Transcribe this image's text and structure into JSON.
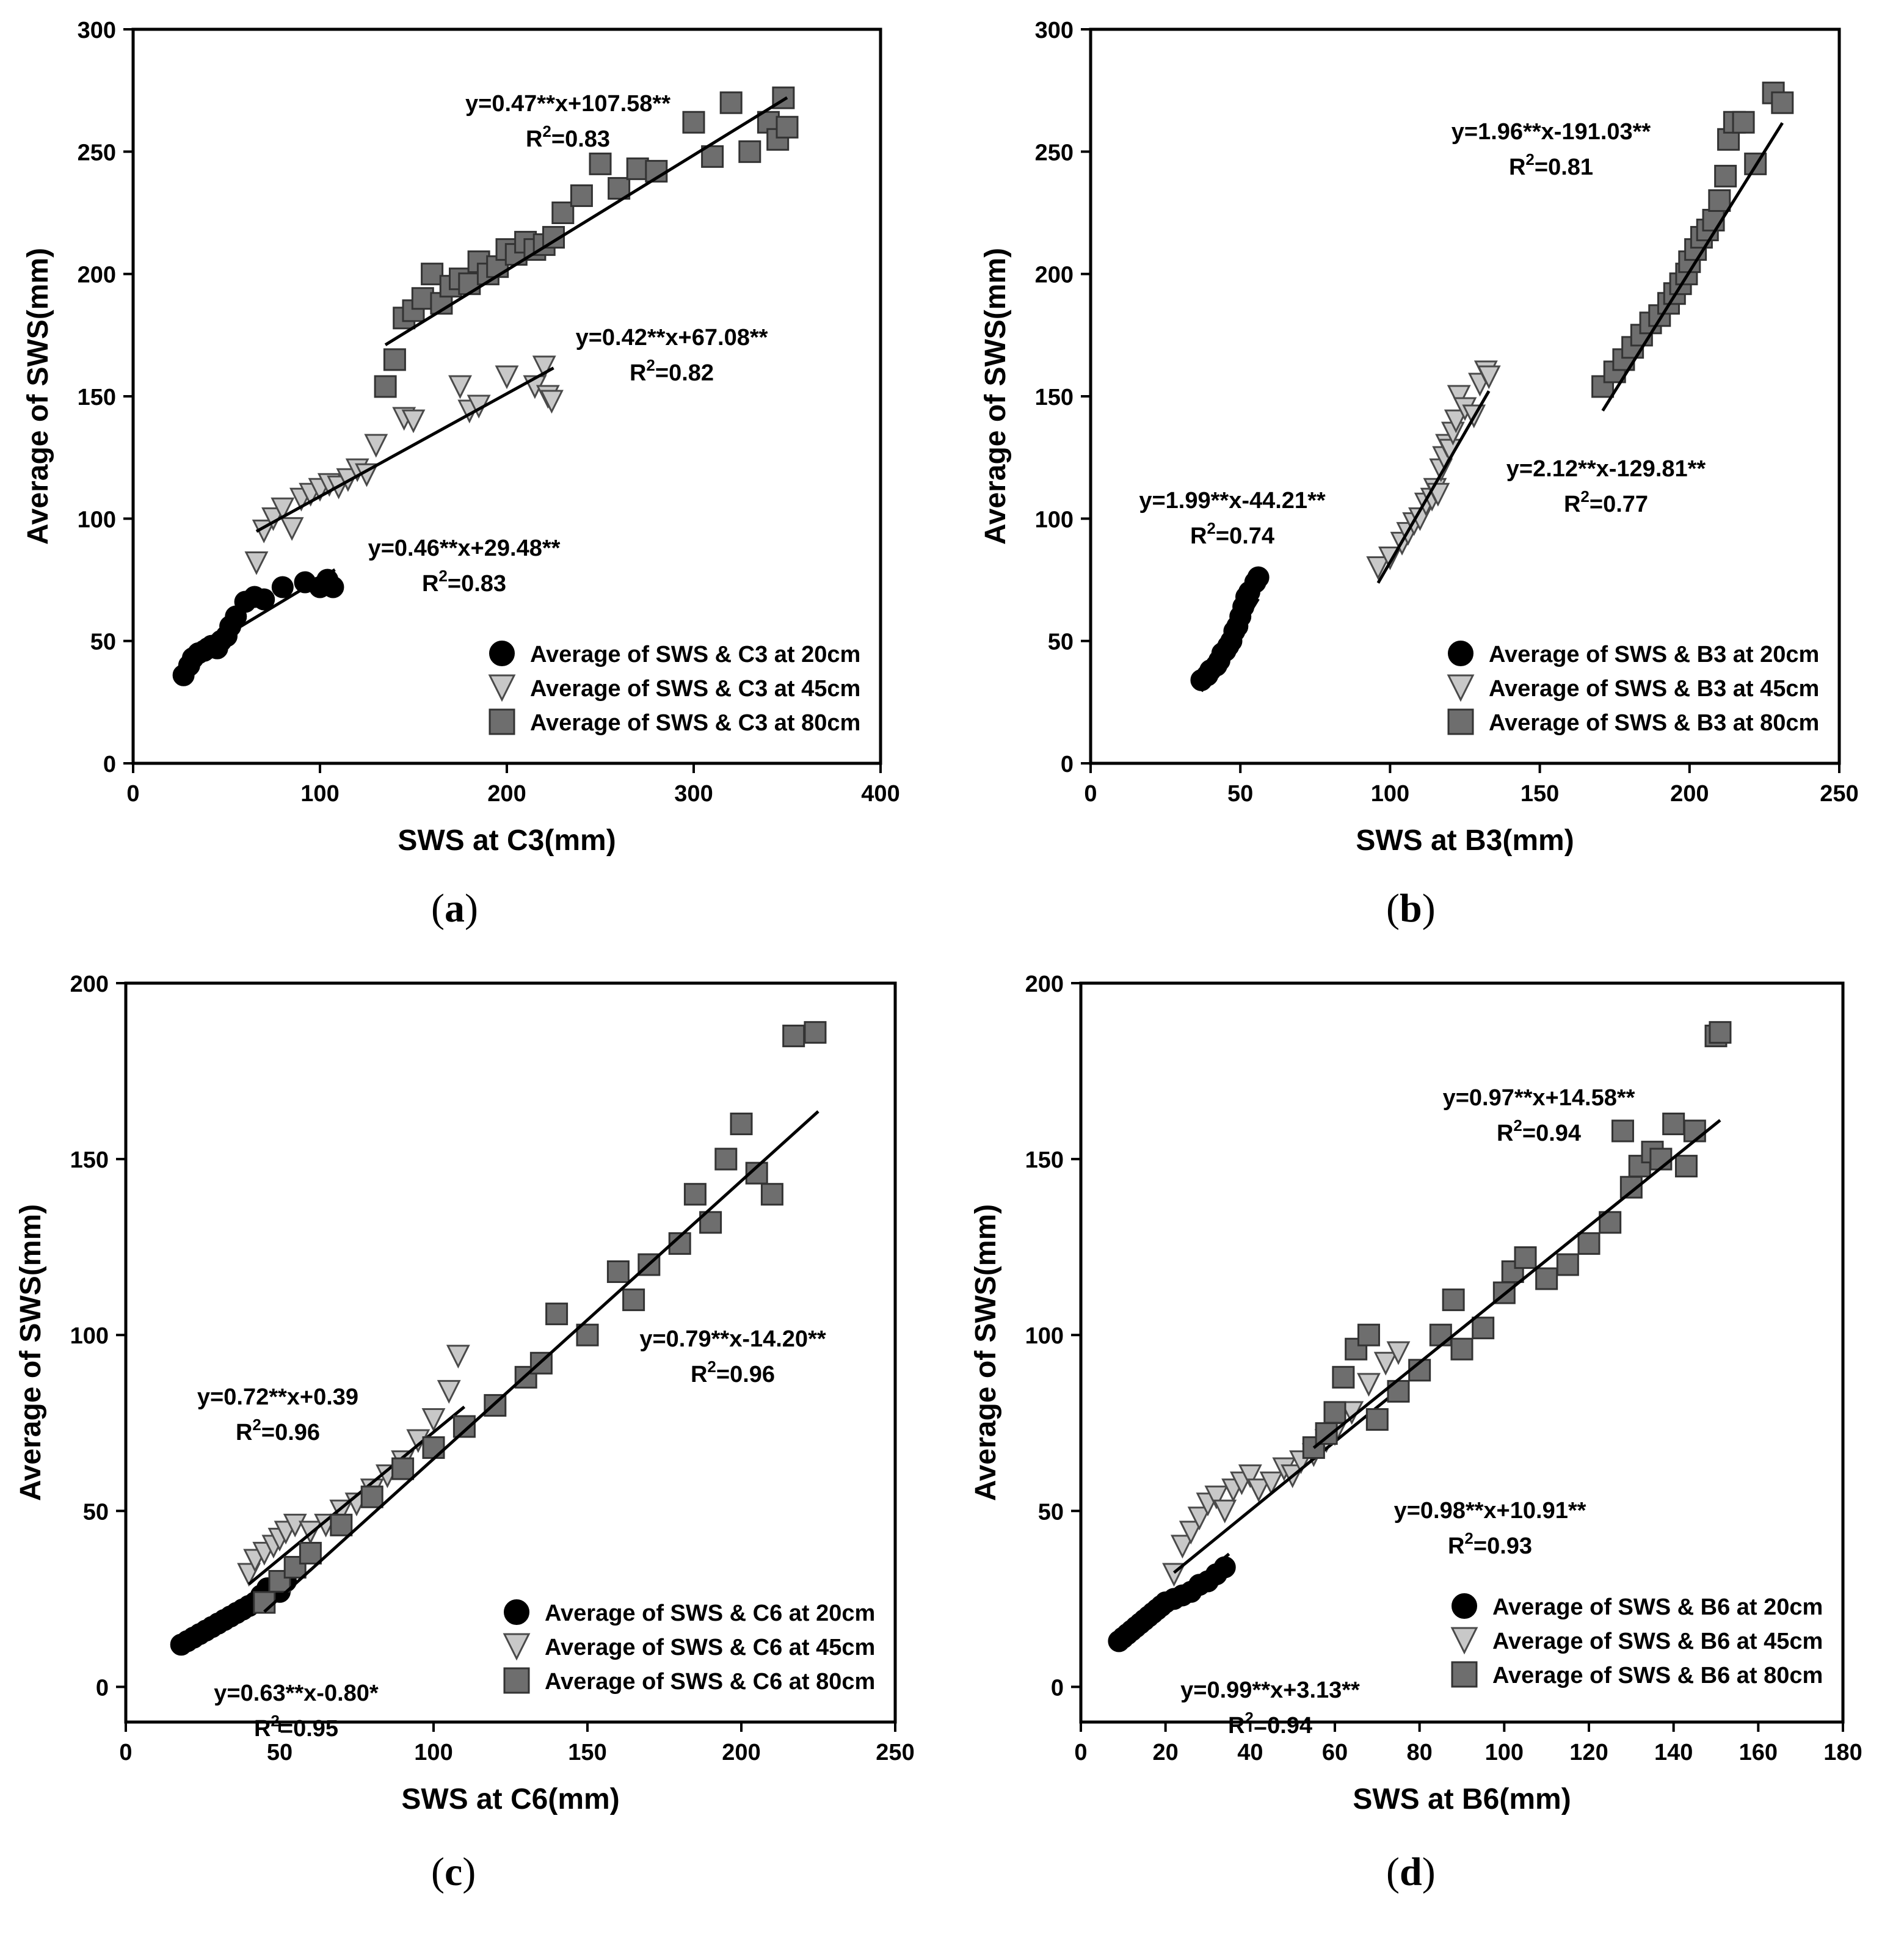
{
  "figure": {
    "captions": [
      {
        "pre": "(",
        "letter": "a",
        "post": ")"
      },
      {
        "pre": "(",
        "letter": "b",
        "post": ")"
      },
      {
        "pre": "(",
        "letter": "c",
        "post": ")"
      },
      {
        "pre": "(",
        "letter": "d",
        "post": ")"
      }
    ]
  },
  "chart_data": [
    {
      "type": "scatter",
      "xlabel": "SWS at C3(mm)",
      "ylabel": "Average of SWS(mm)",
      "xlim": [
        0,
        400
      ],
      "ylim": [
        0,
        300
      ],
      "xticks": [
        0,
        100,
        200,
        300,
        400
      ],
      "yticks": [
        0,
        50,
        100,
        150,
        200,
        250,
        300
      ],
      "legend_position": "bottom-right",
      "series": [
        {
          "name": "Average of SWS & C3 at 20cm",
          "marker": "circle",
          "fit": [
            0.46,
            29.48
          ],
          "fit_range": [
            27,
            108
          ],
          "x": [
            27,
            30,
            32,
            35,
            38,
            40,
            42,
            45,
            47,
            50,
            52,
            55,
            60,
            65,
            70,
            80,
            92,
            100,
            104,
            107
          ],
          "y": [
            36,
            40,
            43,
            45,
            46,
            47,
            48,
            47,
            50,
            52,
            56,
            60,
            66,
            68,
            67,
            72,
            74,
            72,
            75,
            72
          ]
        },
        {
          "name": "Average of SWS & C3 at 45cm",
          "marker": "triangle-down",
          "fit": [
            0.42,
            67.08
          ],
          "fit_range": [
            66,
            225
          ],
          "x": [
            66,
            70,
            75,
            80,
            85,
            90,
            95,
            100,
            105,
            110,
            115,
            120,
            125,
            130,
            145,
            150,
            175,
            180,
            185,
            200,
            215,
            220,
            222,
            224
          ],
          "y": [
            82,
            95,
            100,
            104,
            96,
            108,
            110,
            112,
            114,
            113,
            116,
            120,
            118,
            130,
            141,
            140,
            154,
            144,
            146,
            158,
            154,
            162,
            150,
            148
          ]
        },
        {
          "name": "Average of SWS & C3 at 80cm",
          "marker": "square",
          "fit": [
            0.47,
            107.58
          ],
          "fit_range": [
            135,
            350
          ],
          "x": [
            135,
            140,
            145,
            150,
            155,
            160,
            165,
            170,
            175,
            180,
            185,
            190,
            195,
            200,
            205,
            210,
            215,
            220,
            225,
            230,
            240,
            250,
            260,
            270,
            280,
            300,
            310,
            320,
            330,
            340,
            345,
            348,
            350
          ],
          "y": [
            154,
            165,
            182,
            185,
            190,
            200,
            188,
            195,
            198,
            196,
            205,
            200,
            203,
            210,
            208,
            213,
            210,
            212,
            215,
            225,
            232,
            245,
            235,
            243,
            242,
            262,
            248,
            270,
            250,
            262,
            255,
            272,
            260
          ]
        }
      ],
      "annotations": [
        {
          "eq": "y=0.47**x+107.58**",
          "r2_label": "=0.83"
        },
        {
          "eq": "y=0.42**x+67.08**",
          "r2_label": "=0.82"
        },
        {
          "eq": "y=0.46**x+29.48**",
          "r2_label": "=0.83"
        }
      ]
    },
    {
      "type": "scatter",
      "xlabel": "SWS at B3(mm)",
      "ylabel": "Average of SWS(mm)",
      "xlim": [
        0,
        250
      ],
      "ylim": [
        0,
        300
      ],
      "xticks": [
        0,
        50,
        100,
        150,
        200,
        250
      ],
      "yticks": [
        0,
        50,
        100,
        150,
        200,
        250,
        300
      ],
      "legend_position": "bottom-right",
      "series": [
        {
          "name": "Average of SWS & B3 at 20cm",
          "marker": "circle",
          "fit": [
            1.99,
            -44.21
          ],
          "fit_range": [
            37,
            56
          ],
          "x": [
            37,
            39,
            40,
            42,
            43,
            44,
            45,
            46,
            47,
            48,
            49,
            50,
            51,
            52,
            53,
            55,
            56
          ],
          "y": [
            34,
            36,
            38,
            40,
            42,
            45,
            46,
            48,
            50,
            54,
            56,
            60,
            64,
            68,
            70,
            74,
            76
          ]
        },
        {
          "name": "Average of SWS & B3 at 45cm",
          "marker": "triangle-down",
          "fit": [
            2.12,
            -129.81
          ],
          "fit_range": [
            96,
            133
          ],
          "x": [
            96,
            100,
            104,
            106,
            108,
            110,
            112,
            114,
            115,
            116,
            117,
            118,
            119,
            120,
            121,
            122,
            123,
            125,
            128,
            130,
            132,
            133
          ],
          "y": [
            80,
            84,
            90,
            94,
            98,
            100,
            106,
            108,
            112,
            110,
            120,
            125,
            130,
            128,
            135,
            140,
            150,
            145,
            142,
            155,
            160,
            158
          ]
        },
        {
          "name": "Average of SWS & B3 at 80cm",
          "marker": "square",
          "fit": [
            1.96,
            -191.03
          ],
          "fit_range": [
            171,
            231
          ],
          "x": [
            171,
            175,
            178,
            181,
            184,
            187,
            190,
            193,
            195,
            197,
            199,
            200,
            202,
            204,
            206,
            208,
            210,
            212,
            213,
            215,
            218,
            222,
            228,
            231
          ],
          "y": [
            154,
            160,
            165,
            170,
            175,
            180,
            183,
            188,
            192,
            196,
            200,
            205,
            210,
            215,
            218,
            222,
            230,
            240,
            255,
            262,
            262,
            245,
            274,
            270
          ]
        }
      ],
      "annotations": [
        {
          "eq": "y=1.96**x-191.03**",
          "r2_label": "=0.81"
        },
        {
          "eq": "y=2.12**x-129.81**",
          "r2_label": "=0.77"
        },
        {
          "eq": "y=1.99**x-44.21**",
          "r2_label": "=0.74"
        }
      ]
    },
    {
      "type": "scatter",
      "xlabel": "SWS at C6(mm)",
      "ylabel": "Average of SWS(mm)",
      "xlim": [
        0,
        250
      ],
      "ylim": [
        -10,
        200
      ],
      "xticks": [
        0,
        50,
        100,
        150,
        200,
        250
      ],
      "yticks": [
        0,
        50,
        100,
        150,
        200
      ],
      "legend_position": "bottom-right",
      "series": [
        {
          "name": "Average of SWS & C6 at 20cm",
          "marker": "circle",
          "fit": [
            0.63,
            -0.8
          ],
          "fit_range": [
            18,
            53
          ],
          "x": [
            18,
            20,
            22,
            24,
            26,
            28,
            30,
            32,
            34,
            36,
            38,
            40,
            42,
            44,
            46,
            48,
            50,
            52
          ],
          "y": [
            12,
            13,
            14,
            15,
            16,
            17,
            18,
            19,
            20,
            21,
            22,
            23,
            24,
            26,
            28,
            28,
            27,
            30
          ]
        },
        {
          "name": "Average of SWS & C6 at 45cm",
          "marker": "triangle-down",
          "fit": [
            0.72,
            0.39
          ],
          "fit_range": [
            40,
            110
          ],
          "x": [
            40,
            42,
            45,
            48,
            50,
            52,
            55,
            60,
            65,
            70,
            75,
            80,
            85,
            90,
            95,
            100,
            105,
            108
          ],
          "y": [
            32,
            36,
            38,
            40,
            42,
            44,
            46,
            44,
            46,
            50,
            52,
            56,
            60,
            64,
            70,
            76,
            84,
            94
          ]
        },
        {
          "name": "Average of SWS & C6 at 80cm",
          "marker": "square",
          "fit": [
            0.79,
            -14.2
          ],
          "fit_range": [
            45,
            225
          ],
          "x": [
            45,
            50,
            55,
            60,
            70,
            80,
            90,
            100,
            110,
            120,
            130,
            135,
            140,
            150,
            160,
            165,
            170,
            180,
            185,
            190,
            195,
            200,
            205,
            210,
            217,
            224
          ],
          "y": [
            24,
            30,
            34,
            38,
            46,
            54,
            62,
            68,
            74,
            80,
            88,
            92,
            106,
            100,
            118,
            110,
            120,
            126,
            140,
            132,
            150,
            160,
            146,
            140,
            185,
            186
          ]
        }
      ],
      "annotations": [
        {
          "eq": "y=0.79**x-14.20**",
          "r2_label": "=0.96"
        },
        {
          "eq": "y=0.72**x+0.39",
          "r2_label": "=0.96"
        },
        {
          "eq": "y=0.63**x-0.80*",
          "r2_label": "=0.95"
        }
      ]
    },
    {
      "type": "scatter",
      "xlabel": "SWS at B6(mm)",
      "ylabel": "Average of SWS(mm)",
      "xlim": [
        0,
        180
      ],
      "ylim": [
        -10,
        200
      ],
      "xticks": [
        0,
        20,
        40,
        60,
        80,
        100,
        120,
        140,
        160,
        180
      ],
      "yticks": [
        0,
        50,
        100,
        150,
        200
      ],
      "legend_position": "bottom-right",
      "series": [
        {
          "name": "Average of SWS & B6 at 20cm",
          "marker": "circle",
          "fit": [
            0.99,
            3.13
          ],
          "fit_range": [
            9,
            35
          ],
          "x": [
            9,
            10,
            11,
            12,
            13,
            14,
            15,
            16,
            17,
            18,
            19,
            20,
            22,
            24,
            26,
            28,
            30,
            32,
            34
          ],
          "y": [
            13,
            14,
            15,
            16,
            17,
            18,
            19,
            20,
            21,
            22,
            23,
            24,
            25,
            26,
            27,
            29,
            30,
            32,
            34
          ]
        },
        {
          "name": "Average of SWS & B6 at 45cm",
          "marker": "triangle-down",
          "fit": [
            0.98,
            10.91
          ],
          "fit_range": [
            22,
            75
          ],
          "x": [
            22,
            24,
            26,
            28,
            30,
            32,
            34,
            36,
            38,
            40,
            42,
            45,
            48,
            50,
            52,
            55,
            58,
            60,
            64,
            68,
            72,
            75
          ],
          "y": [
            32,
            40,
            44,
            48,
            52,
            54,
            50,
            56,
            58,
            60,
            56,
            58,
            62,
            60,
            64,
            66,
            70,
            72,
            78,
            86,
            92,
            95
          ]
        },
        {
          "name": "Average of SWS & B6 at 80cm",
          "marker": "square",
          "fit": [
            0.97,
            14.58
          ],
          "fit_range": [
            55,
            151
          ],
          "x": [
            55,
            58,
            60,
            62,
            65,
            68,
            70,
            75,
            80,
            85,
            88,
            90,
            95,
            100,
            102,
            105,
            110,
            115,
            120,
            125,
            128,
            130,
            132,
            135,
            137,
            140,
            143,
            145,
            150,
            151
          ],
          "y": [
            68,
            72,
            78,
            88,
            96,
            100,
            76,
            84,
            90,
            100,
            110,
            96,
            102,
            112,
            118,
            122,
            116,
            120,
            126,
            132,
            158,
            142,
            148,
            152,
            150,
            160,
            148,
            158,
            185,
            186
          ]
        }
      ],
      "annotations": [
        {
          "eq": "y=0.97**x+14.58**",
          "r2_label": "=0.94"
        },
        {
          "eq": "y=0.98**x+10.91**",
          "r2_label": "=0.93"
        },
        {
          "eq": "y=0.99**x+3.13**",
          "r2_label": "=0.94"
        }
      ]
    }
  ]
}
